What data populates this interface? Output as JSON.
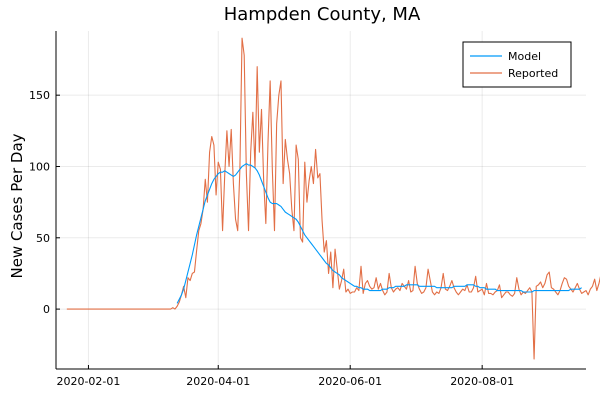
{
  "chart_data": {
    "type": "line",
    "title": "Hampden County, MA",
    "xlabel": "",
    "ylabel": "New Cases Per Day",
    "x_start": "2020-01-22",
    "x_end": "2020-09-13",
    "xlim": [
      "2020-01-17",
      "2020-09-18"
    ],
    "ylim": [
      -42,
      195
    ],
    "x_ticks": [
      "2020-02-01",
      "2020-04-01",
      "2020-06-01",
      "2020-08-01"
    ],
    "y_ticks": [
      0,
      50,
      100,
      150
    ],
    "grid": true,
    "legend_position": "top-right",
    "series": [
      {
        "name": "Model",
        "color": "#009AFA",
        "start": "2020-03-13",
        "values": [
          4,
          7,
          10,
          14,
          20,
          26,
          32,
          38,
          45,
          52,
          58,
          64,
          70,
          76,
          80,
          84,
          88,
          91,
          93,
          95,
          96,
          96,
          97,
          96,
          95,
          94,
          93,
          94,
          96,
          98,
          100,
          101,
          102,
          101,
          101,
          100,
          99,
          97,
          94,
          90,
          86,
          82,
          78,
          75,
          74,
          74,
          74,
          73,
          72,
          70,
          68,
          67,
          66,
          65,
          64,
          63,
          61,
          58,
          55,
          52,
          50,
          48,
          46,
          44,
          42,
          40,
          38,
          36,
          34,
          32,
          31,
          29,
          27,
          26,
          25,
          24,
          22,
          21,
          20,
          19,
          18,
          17,
          16,
          16,
          15,
          15,
          14,
          14,
          14,
          13,
          13,
          13,
          13,
          13,
          13,
          14,
          14,
          14,
          15,
          15,
          15,
          16,
          16,
          16,
          16,
          16,
          17,
          17,
          17,
          17,
          17,
          17,
          16,
          16,
          16,
          16,
          16,
          16,
          16,
          16,
          15,
          15,
          15,
          15,
          15,
          15,
          15,
          15,
          16,
          16,
          16,
          16,
          16,
          16,
          17,
          17,
          17,
          17,
          16,
          16,
          15,
          15,
          15,
          14,
          14,
          14,
          14,
          14,
          13,
          13,
          13,
          13,
          13,
          13,
          13,
          13,
          13,
          13,
          13,
          13,
          12,
          12,
          12,
          12,
          12,
          13,
          13,
          13,
          13,
          13,
          13,
          13,
          13,
          13,
          13,
          13,
          13,
          13,
          13,
          13,
          13,
          13,
          14,
          14,
          14,
          14,
          14,
          15
        ]
      },
      {
        "name": "Reported",
        "color": "#E26F46",
        "start": "2020-01-22",
        "values": [
          0,
          0,
          0,
          0,
          0,
          0,
          0,
          0,
          0,
          0,
          0,
          0,
          0,
          0,
          0,
          0,
          0,
          0,
          0,
          0,
          0,
          0,
          0,
          0,
          0,
          0,
          0,
          0,
          0,
          0,
          0,
          0,
          0,
          0,
          0,
          0,
          0,
          0,
          0,
          0,
          0,
          0,
          0,
          0,
          0,
          0,
          0,
          0,
          0,
          1,
          0,
          2,
          5,
          10,
          16,
          8,
          22,
          20,
          25,
          26,
          41,
          55,
          60,
          70,
          91,
          75,
          110,
          121,
          115,
          80,
          103,
          98,
          55,
          94,
          125,
          100,
          126,
          88,
          63,
          55,
          98,
          190,
          178,
          95,
          55,
          110,
          138,
          99,
          170,
          110,
          140,
          90,
          60,
          117,
          160,
          98,
          55,
          130,
          150,
          160,
          88,
          119,
          105,
          95,
          70,
          55,
          115,
          105,
          50,
          47,
          103,
          75,
          90,
          100,
          88,
          112,
          92,
          95,
          62,
          40,
          48,
          25,
          40,
          15,
          42,
          28,
          14,
          20,
          28,
          12,
          14,
          11,
          12,
          12,
          15,
          13,
          30,
          11,
          18,
          20,
          16,
          14,
          15,
          22,
          14,
          18,
          13,
          10,
          12,
          25,
          15,
          12,
          14,
          15,
          13,
          18,
          16,
          14,
          20,
          12,
          13,
          30,
          18,
          14,
          11,
          12,
          15,
          28,
          20,
          12,
          10,
          12,
          11,
          15,
          25,
          14,
          13,
          16,
          20,
          15,
          12,
          10,
          12,
          14,
          13,
          17,
          12,
          12,
          15,
          23,
          12,
          13,
          14,
          10,
          18,
          11,
          11,
          10,
          12,
          13,
          17,
          8,
          10,
          12,
          12,
          10,
          9,
          11,
          22,
          14,
          10,
          12,
          11,
          13,
          15,
          12,
          -35,
          16,
          17,
          19,
          15,
          18,
          24,
          26,
          15,
          14,
          12,
          10,
          13,
          18,
          22,
          21,
          16,
          14,
          12,
          15,
          18,
          14,
          11,
          12,
          13,
          10,
          14,
          16,
          21,
          13,
          18,
          25,
          15,
          12
        ]
      }
    ]
  }
}
